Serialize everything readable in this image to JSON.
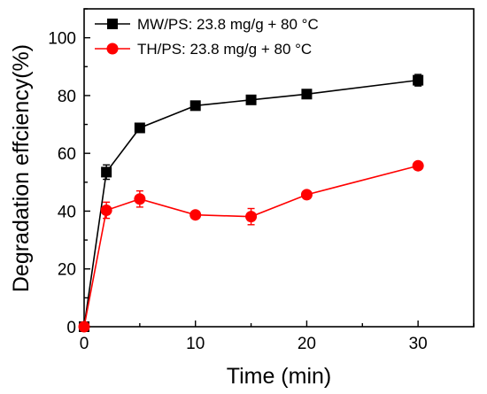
{
  "chart_data": {
    "type": "line",
    "xlabel": "Time (min)",
    "ylabel": "Degradation effciency(%)",
    "xlim": [
      0,
      35
    ],
    "ylim": [
      0,
      110
    ],
    "xticks": [
      0,
      10,
      20,
      30
    ],
    "yticks": [
      0,
      20,
      40,
      60,
      80,
      100
    ],
    "legend_position": "top-left",
    "grid": false,
    "series": [
      {
        "name": "MW/PS: 23.8 mg/g + 80 °C",
        "color": "#000000",
        "marker": "square",
        "x": [
          0,
          2,
          5,
          10,
          15,
          20,
          30
        ],
        "y": [
          0,
          53.5,
          68.8,
          76.5,
          78.5,
          80.5,
          85.3
        ],
        "err": [
          0,
          2.5,
          0.8,
          0.8,
          0.8,
          0.8,
          2.0
        ]
      },
      {
        "name": "TH/PS: 23.8 mg/g + 80 °C",
        "color": "#ff0000",
        "marker": "circle",
        "x": [
          0,
          2,
          5,
          10,
          15,
          20,
          30
        ],
        "y": [
          0,
          40.3,
          44.2,
          38.7,
          38.1,
          45.7,
          55.7
        ],
        "err": [
          0,
          2.8,
          2.8,
          0.8,
          2.8,
          0.8,
          0.8
        ]
      }
    ]
  }
}
